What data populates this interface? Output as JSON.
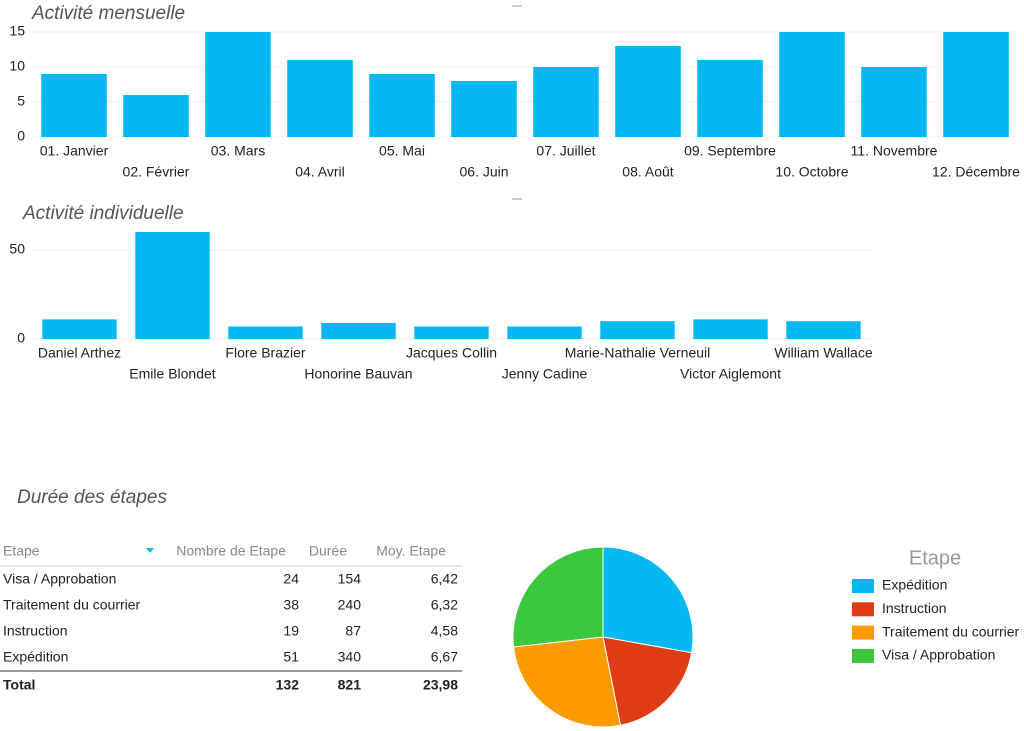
{
  "chart_data": [
    {
      "type": "bar",
      "title": "Activité mensuelle",
      "categories": [
        "01. Janvier",
        "02. Février",
        "03. Mars",
        "04. Avril",
        "05. Mai",
        "06. Juin",
        "07. Juillet",
        "08. Août",
        "09. Septembre",
        "10. Octobre",
        "11. Novembre",
        "12. Décembre"
      ],
      "values": [
        9,
        6,
        15,
        11,
        9,
        8,
        10,
        13,
        11,
        15,
        10,
        15
      ],
      "color": "#01b8f0",
      "ylim": [
        0,
        15
      ],
      "yticks": [
        0,
        5,
        10,
        15
      ],
      "grid": true
    },
    {
      "type": "bar",
      "title": "Activité individuelle",
      "categories": [
        "Daniel Arthez",
        "Emile Blondet",
        "Flore Brazier",
        "Honorine Bauvan",
        "Jacques Collin",
        "Jenny Cadine",
        "Marie-Nathalie Verneuil",
        "Victor Aiglemont",
        "William Wallace"
      ],
      "values": [
        11,
        60,
        7,
        9,
        7,
        7,
        10,
        11,
        10
      ],
      "color": "#01b8f0",
      "ylim": [
        0,
        60
      ],
      "yticks": [
        0,
        50
      ],
      "grid": true
    },
    {
      "type": "pie",
      "legend_title": "Etape",
      "categories": [
        "Expédition",
        "Instruction",
        "Traitement du courrier",
        "Visa / Approbation"
      ],
      "values": [
        6.67,
        4.58,
        6.32,
        6.42
      ],
      "colors": [
        "#01b8f0",
        "#dd3c14",
        "#fd9a00",
        "#3cc83c"
      ]
    }
  ],
  "table": {
    "title": "Durée des étapes",
    "columns": [
      "Etape",
      "Nombre de Etape",
      "Durée",
      "Moy. Etape"
    ],
    "rows": [
      [
        "Visa / Approbation",
        "24",
        "154",
        "6,42"
      ],
      [
        "Traitement du courrier",
        "38",
        "240",
        "6,32"
      ],
      [
        "Instruction",
        "19",
        "87",
        "4,58"
      ],
      [
        "Expédition",
        "51",
        "340",
        "6,67"
      ]
    ],
    "total": [
      "Total",
      "132",
      "821",
      "23,98"
    ]
  }
}
